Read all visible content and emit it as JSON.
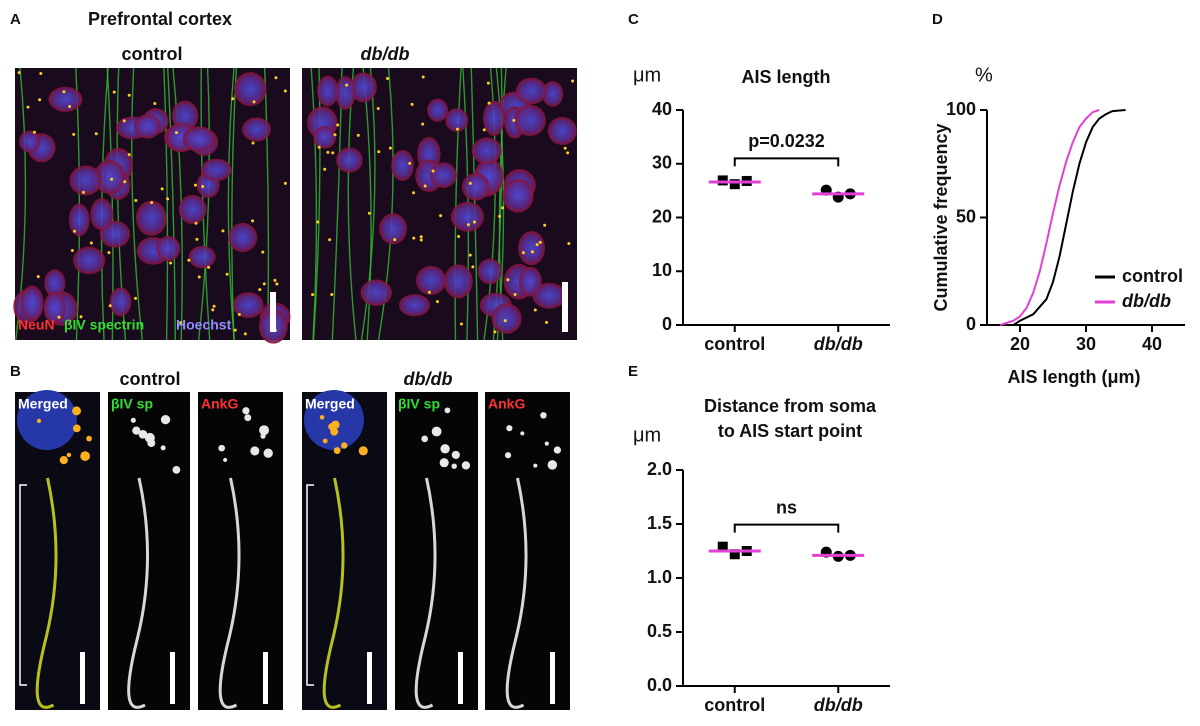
{
  "panels": {
    "A": {
      "label": "A",
      "title": "Prefrontal cortex",
      "conditions": [
        "control",
        "db/db"
      ],
      "stains": [
        "NeuN",
        "βIV spectrin",
        "Hoechst"
      ]
    },
    "B": {
      "label": "B",
      "conditions": [
        "control",
        "db/db"
      ],
      "channels": [
        "Merged",
        "βIV sp",
        "AnkG"
      ]
    }
  },
  "chart_data": [
    {
      "type": "dot",
      "panel": "C",
      "unit": "μm",
      "title": "AIS length",
      "categories": [
        "control",
        "db/db"
      ],
      "points": [
        [
          26.9,
          26.2,
          26.8
        ],
        [
          25.1,
          23.8,
          24.4
        ]
      ],
      "markers": [
        "square",
        "circle"
      ],
      "point_color": "#000000",
      "means": [
        26.6,
        24.4
      ],
      "mean_color": "#e23fd6",
      "annotation": "p=0.0232",
      "ylim": [
        0,
        40
      ],
      "yticks": [
        0,
        10,
        20,
        30,
        40
      ]
    },
    {
      "type": "line",
      "panel": "D",
      "unit": "%",
      "ylabel": "Cumulative frequency",
      "xlabel": "AIS length (μm)",
      "series": [
        {
          "name": "control",
          "color": "#000000",
          "x": [
            19,
            20,
            22,
            24,
            25,
            26,
            27,
            28,
            29,
            30,
            31,
            32,
            33,
            34,
            36
          ],
          "values": [
            0,
            2,
            5,
            12,
            20,
            32,
            47,
            62,
            75,
            85,
            92,
            96,
            98,
            99.5,
            100
          ]
        },
        {
          "name": "db/db",
          "color": "#e23fd6",
          "x": [
            17,
            19,
            20,
            21,
            22,
            23,
            24,
            25,
            26,
            27,
            28,
            29,
            30,
            31,
            32
          ],
          "values": [
            0,
            2,
            4,
            8,
            15,
            25,
            38,
            52,
            65,
            76,
            85,
            92,
            96,
            99,
            100
          ]
        }
      ],
      "legend": "lower right",
      "xlim": [
        15,
        45
      ],
      "xticks": [
        20,
        30,
        40
      ],
      "ylim": [
        0,
        100
      ],
      "yticks": [
        0,
        50,
        100
      ]
    },
    {
      "type": "dot",
      "panel": "E",
      "unit": "μm",
      "title": [
        "Distance from soma",
        "to AIS start point"
      ],
      "categories": [
        "control",
        "db/db"
      ],
      "points": [
        [
          1.29,
          1.22,
          1.25
        ],
        [
          1.24,
          1.2,
          1.21
        ]
      ],
      "markers": [
        "square",
        "circle"
      ],
      "point_color": "#000000",
      "means": [
        1.25,
        1.21
      ],
      "mean_color": "#e23fd6",
      "annotation": "ns",
      "ylim": [
        0,
        2
      ],
      "yticks": [
        {
          "value": 0,
          "label": "0.0"
        },
        {
          "value": 0.5,
          "label": "0.5"
        },
        {
          "value": 1,
          "label": "1.0"
        },
        {
          "value": 1.5,
          "label": "1.5"
        },
        {
          "value": 2,
          "label": "2.0"
        }
      ]
    }
  ]
}
